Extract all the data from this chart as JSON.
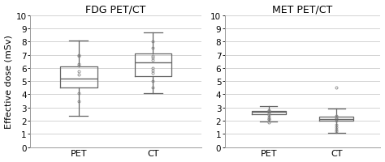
{
  "fdg": {
    "title": "FDG PET/CT",
    "ylabel": "Effective dose (mSv)",
    "categories": [
      "PET",
      "CT"
    ],
    "pet": {
      "whislo": 2.4,
      "q1": 4.5,
      "med": 5.2,
      "q3": 6.1,
      "whishi": 8.1,
      "fliers": [
        3.5,
        4.1,
        5.5,
        5.75,
        6.2,
        6.3,
        6.9,
        7.0
      ]
    },
    "ct": {
      "whislo": 4.1,
      "q1": 5.4,
      "med": 6.4,
      "q3": 7.1,
      "whishi": 8.7,
      "fliers": [
        4.5,
        5.0,
        5.6,
        5.8,
        6.0,
        6.6,
        6.8,
        6.9,
        7.5,
        8.0
      ]
    },
    "ylim": [
      0,
      10
    ],
    "yticks": [
      0,
      1,
      2,
      3,
      4,
      5,
      6,
      7,
      8,
      9,
      10
    ]
  },
  "met": {
    "title": "MET PET/CT",
    "categories": [
      "PET",
      "CT"
    ],
    "pet": {
      "whislo": 1.95,
      "q1": 2.5,
      "med": 2.65,
      "q3": 2.75,
      "whishi": 3.1,
      "fliers": [
        1.9,
        2.1,
        2.15,
        2.25,
        2.45,
        2.55,
        2.65,
        2.75,
        2.8
      ]
    },
    "ct": {
      "whislo": 1.1,
      "q1": 2.0,
      "med": 2.15,
      "q3": 2.3,
      "whishi": 2.9,
      "fliers": [
        1.2,
        1.3,
        1.5,
        1.7,
        2.0,
        2.1,
        2.2,
        2.3,
        2.4,
        4.5
      ]
    },
    "ylim": [
      0,
      10
    ],
    "yticks": [
      0,
      1,
      2,
      3,
      4,
      5,
      6,
      7,
      8,
      9,
      10
    ]
  },
  "box_color": "#666666",
  "median_color": "#666666",
  "flier_color": "#888888",
  "bg_color": "#ffffff",
  "grid_color": "#cccccc",
  "title_fontsize": 9,
  "label_fontsize": 8,
  "tick_fontsize": 7.5
}
